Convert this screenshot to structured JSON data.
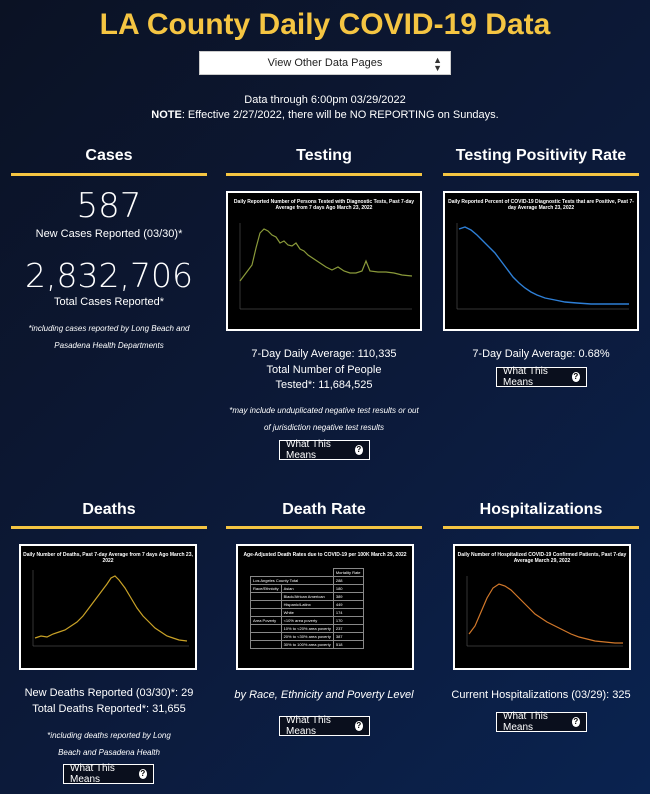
{
  "page": {
    "title": "LA County Daily COVID-19 Data",
    "select_label": "View Other Data Pages",
    "data_through": "Data through 6:00pm 03/29/2022",
    "note_label": "NOTE",
    "note_text": ": Effective 2/27/2022, there will be NO REPORTING on Sundays."
  },
  "cases": {
    "title": "Cases",
    "new_value": "587",
    "new_label": "New Cases Reported (03/30)*",
    "total_value": "2,832,706",
    "total_label": "Total Cases Reported*",
    "footnote": "*including cases reported by Long Beach and Pasadena Health Departments"
  },
  "testing": {
    "title": "Testing",
    "chart_title": "Daily Reported Number of Persons Tested with Diagnostic Tests, Past 7-day Average from 7 days Ago March 23, 2022",
    "avg": "7-Day Daily Average: 110,335",
    "total": "Total Number of People Tested*: 11,684,525",
    "footnote": "*may include unduplicated negative test results or out of jurisdiction negative test results",
    "button": "What This Means"
  },
  "positivity": {
    "title": "Testing Positivity Rate",
    "chart_title": "Daily Reported Percent of COVID-19 Diagnostic Tests that are Positive, Past 7-day Average March 23, 2022",
    "avg": "7-Day Daily Average: 0.68%",
    "button": "What This Means"
  },
  "deaths": {
    "title": "Deaths",
    "chart_title": "Daily Number of Deaths, Past 7-day Average from 7 days Ago March 23, 2022",
    "new": "New Deaths Reported (03/30)*: 29",
    "total": "Total Deaths Reported*: 31,655",
    "footnote": "*including deaths reported by Long Beach and Pasadena Health Departments",
    "button": "What This Means"
  },
  "death_rate": {
    "title": "Death Rate",
    "chart_title": "Age-Adjusted Death Rates due to COVID-19 per 100K March 29, 2022",
    "table_header": "Mortality Rate",
    "table_total_label": "Los Angeles County Total",
    "table_total_value": "288",
    "rows": [
      {
        "group": "Race/Ethnicity",
        "label": "Asian",
        "value": "180"
      },
      {
        "group": "",
        "label": "Black/African American",
        "value": "389"
      },
      {
        "group": "",
        "label": "Hispanic/Latinx",
        "value": "449"
      },
      {
        "group": "",
        "label": "White",
        "value": "174"
      },
      {
        "group": "Area Poverty",
        "label": "<10% area poverty",
        "value": "170"
      },
      {
        "group": "",
        "label": "10% to <20% area poverty",
        "value": "237"
      },
      {
        "group": "",
        "label": "20% to <30% area poverty",
        "value": "387"
      },
      {
        "group": "",
        "label": "30% to 100% area poverty",
        "value": "518"
      }
    ],
    "caption": "by Race, Ethnicity and Poverty Level",
    "button": "What This Means"
  },
  "hosp": {
    "title": "Hospitalizations",
    "chart_title": "Daily Number of Hospitalized COVID-19 Confirmed Patients, Past 7-day Average March 29, 2022",
    "current": "Current Hospitalizations (03/29): 325",
    "button": "What This Means"
  },
  "colors": {
    "accent": "#f5c542",
    "testing_line": "#8a9a3a",
    "positivity_line": "#2e7fd6",
    "deaths_line": "#c9a227",
    "hosp_line": "#d2782a"
  }
}
